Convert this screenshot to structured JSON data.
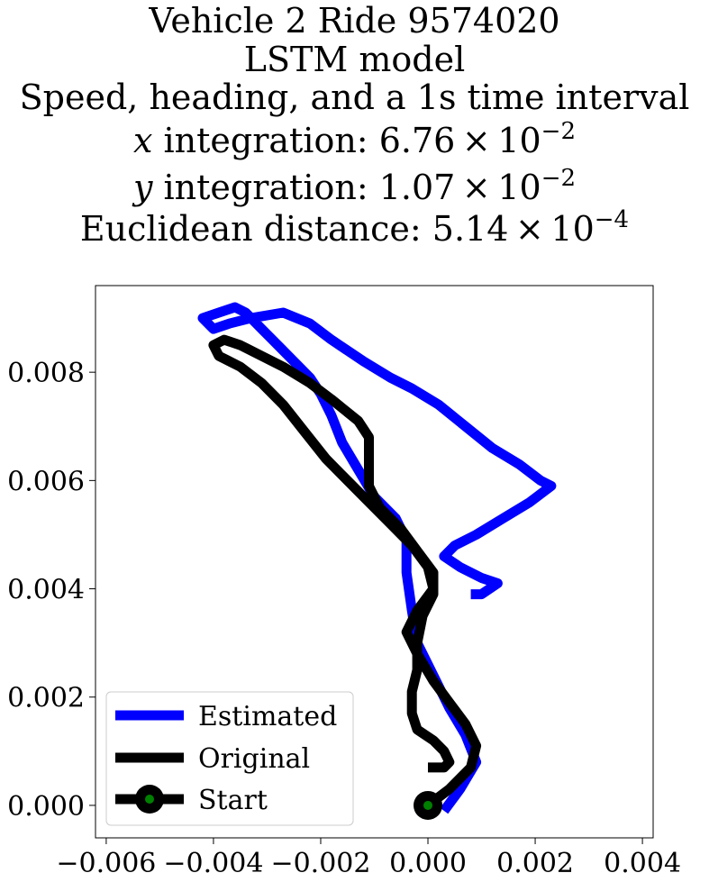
{
  "chart_data": {
    "type": "line",
    "title_lines": [
      {
        "text": "Vehicle 2 Ride 9574020"
      },
      {
        "text": "LSTM model"
      },
      {
        "text": "Speed, heading, and a 1s time interval"
      },
      {
        "var": "x",
        "text": " integration: 6.76 × 10",
        "exp": "−2"
      },
      {
        "var": "y",
        "text": " integration: 1.07 × 10",
        "exp": "−2"
      },
      {
        "text": "Euclidean distance: 5.14 × 10",
        "exp": "−4"
      }
    ],
    "xlabel": "",
    "ylabel": "",
    "xlim": [
      -0.0062,
      0.0042
    ],
    "ylim": [
      -0.0006,
      0.0096
    ],
    "xticks": [
      -0.006,
      -0.004,
      -0.002,
      0.0,
      0.002,
      0.004
    ],
    "xtick_labels": [
      "−0.006",
      "−0.004",
      "−0.002",
      "0.000",
      "0.002",
      "0.004"
    ],
    "yticks": [
      0.0,
      0.002,
      0.004,
      0.006,
      0.008
    ],
    "ytick_labels": [
      "0.000",
      "0.002",
      "0.004",
      "0.006",
      "0.008"
    ],
    "grid": false,
    "legend": "lower-left",
    "series": [
      {
        "name": "Estimated",
        "color": "#0000ff",
        "points": [
          [
            0.0003,
            -0.0001
          ],
          [
            0.0006,
            0.0003
          ],
          [
            0.0009,
            0.0008
          ],
          [
            0.0007,
            0.0013
          ],
          [
            0.0004,
            0.0018
          ],
          [
            0.0001,
            0.0024
          ],
          [
            -0.0002,
            0.003
          ],
          [
            -0.0003,
            0.0036
          ],
          [
            -0.0004,
            0.0043
          ],
          [
            -0.0004,
            0.0049
          ],
          [
            -0.0006,
            0.0053
          ],
          [
            -0.001,
            0.0057
          ],
          [
            -0.0013,
            0.0062
          ],
          [
            -0.0016,
            0.0067
          ],
          [
            -0.0018,
            0.0072
          ],
          [
            -0.002,
            0.0076
          ],
          [
            -0.0022,
            0.0079
          ],
          [
            -0.0025,
            0.0082
          ],
          [
            -0.0028,
            0.0085
          ],
          [
            -0.0031,
            0.0088
          ],
          [
            -0.0034,
            0.0091
          ],
          [
            -0.0036,
            0.0092
          ],
          [
            -0.0039,
            0.0091
          ],
          [
            -0.0042,
            0.009
          ],
          [
            -0.004,
            0.0088
          ],
          [
            -0.0037,
            0.0089
          ],
          [
            -0.0033,
            0.009
          ],
          [
            -0.0027,
            0.0091
          ],
          [
            -0.0022,
            0.0089
          ],
          [
            -0.0018,
            0.0086
          ],
          [
            -0.0012,
            0.0082
          ],
          [
            -0.0007,
            0.0079
          ],
          [
            -0.0003,
            0.0077
          ],
          [
            0.0002,
            0.0074
          ],
          [
            0.0007,
            0.007
          ],
          [
            0.0012,
            0.0066
          ],
          [
            0.0017,
            0.0063
          ],
          [
            0.0021,
            0.006
          ],
          [
            0.0023,
            0.0059
          ],
          [
            0.0019,
            0.0056
          ],
          [
            0.0014,
            0.0053
          ],
          [
            0.0009,
            0.005
          ],
          [
            0.0005,
            0.0048
          ],
          [
            0.0003,
            0.0046
          ],
          [
            0.0006,
            0.0044
          ],
          [
            0.001,
            0.0042
          ],
          [
            0.0013,
            0.0041
          ],
          [
            0.001,
            0.0039
          ],
          [
            0.0008,
            0.0039
          ]
        ]
      },
      {
        "name": "Original",
        "color": "#000000",
        "points": [
          [
            0.0,
            0.0
          ],
          [
            0.0004,
            0.0003
          ],
          [
            0.0008,
            0.0007
          ],
          [
            0.0009,
            0.0011
          ],
          [
            0.0007,
            0.0015
          ],
          [
            0.0004,
            0.0019
          ],
          [
            0.0001,
            0.0023
          ],
          [
            -0.0002,
            0.0028
          ],
          [
            -0.0004,
            0.0032
          ],
          [
            -0.0002,
            0.0036
          ],
          [
            0.0001,
            0.004
          ],
          [
            0.0,
            0.0044
          ],
          [
            -0.0003,
            0.0048
          ],
          [
            -0.0007,
            0.0052
          ],
          [
            -0.0011,
            0.0056
          ],
          [
            -0.0015,
            0.006
          ],
          [
            -0.0019,
            0.0064
          ],
          [
            -0.0023,
            0.0069
          ],
          [
            -0.0027,
            0.0074
          ],
          [
            -0.0031,
            0.0078
          ],
          [
            -0.0035,
            0.0081
          ],
          [
            -0.0039,
            0.0083
          ],
          [
            -0.004,
            0.0085
          ],
          [
            -0.0038,
            0.0086
          ],
          [
            -0.0035,
            0.0085
          ],
          [
            -0.0031,
            0.0083
          ],
          [
            -0.0027,
            0.0081
          ],
          [
            -0.0022,
            0.0078
          ],
          [
            -0.0018,
            0.0075
          ],
          [
            -0.0013,
            0.0071
          ],
          [
            -0.0011,
            0.0068
          ],
          [
            -0.0011,
            0.0063
          ],
          [
            -0.0011,
            0.0059
          ],
          [
            -0.0009,
            0.0055
          ],
          [
            -0.0005,
            0.0051
          ],
          [
            -0.0002,
            0.0047
          ],
          [
            0.0001,
            0.0043
          ],
          [
            0.0001,
            0.0039
          ],
          [
            -0.0001,
            0.0035
          ],
          [
            -0.0002,
            0.003
          ],
          [
            -0.0002,
            0.0025
          ],
          [
            -0.0003,
            0.0021
          ],
          [
            -0.0003,
            0.0017
          ],
          [
            -0.0002,
            0.0014
          ],
          [
            0.0001,
            0.0012
          ],
          [
            0.0003,
            0.001
          ],
          [
            0.0004,
            0.0008
          ],
          [
            0.0003,
            0.0007
          ],
          [
            0.0,
            0.0007
          ]
        ]
      }
    ],
    "start_marker": {
      "name": "Start",
      "point": [
        0.0,
        0.0
      ],
      "outer_color": "#000000",
      "inner_color": "#008000"
    }
  }
}
